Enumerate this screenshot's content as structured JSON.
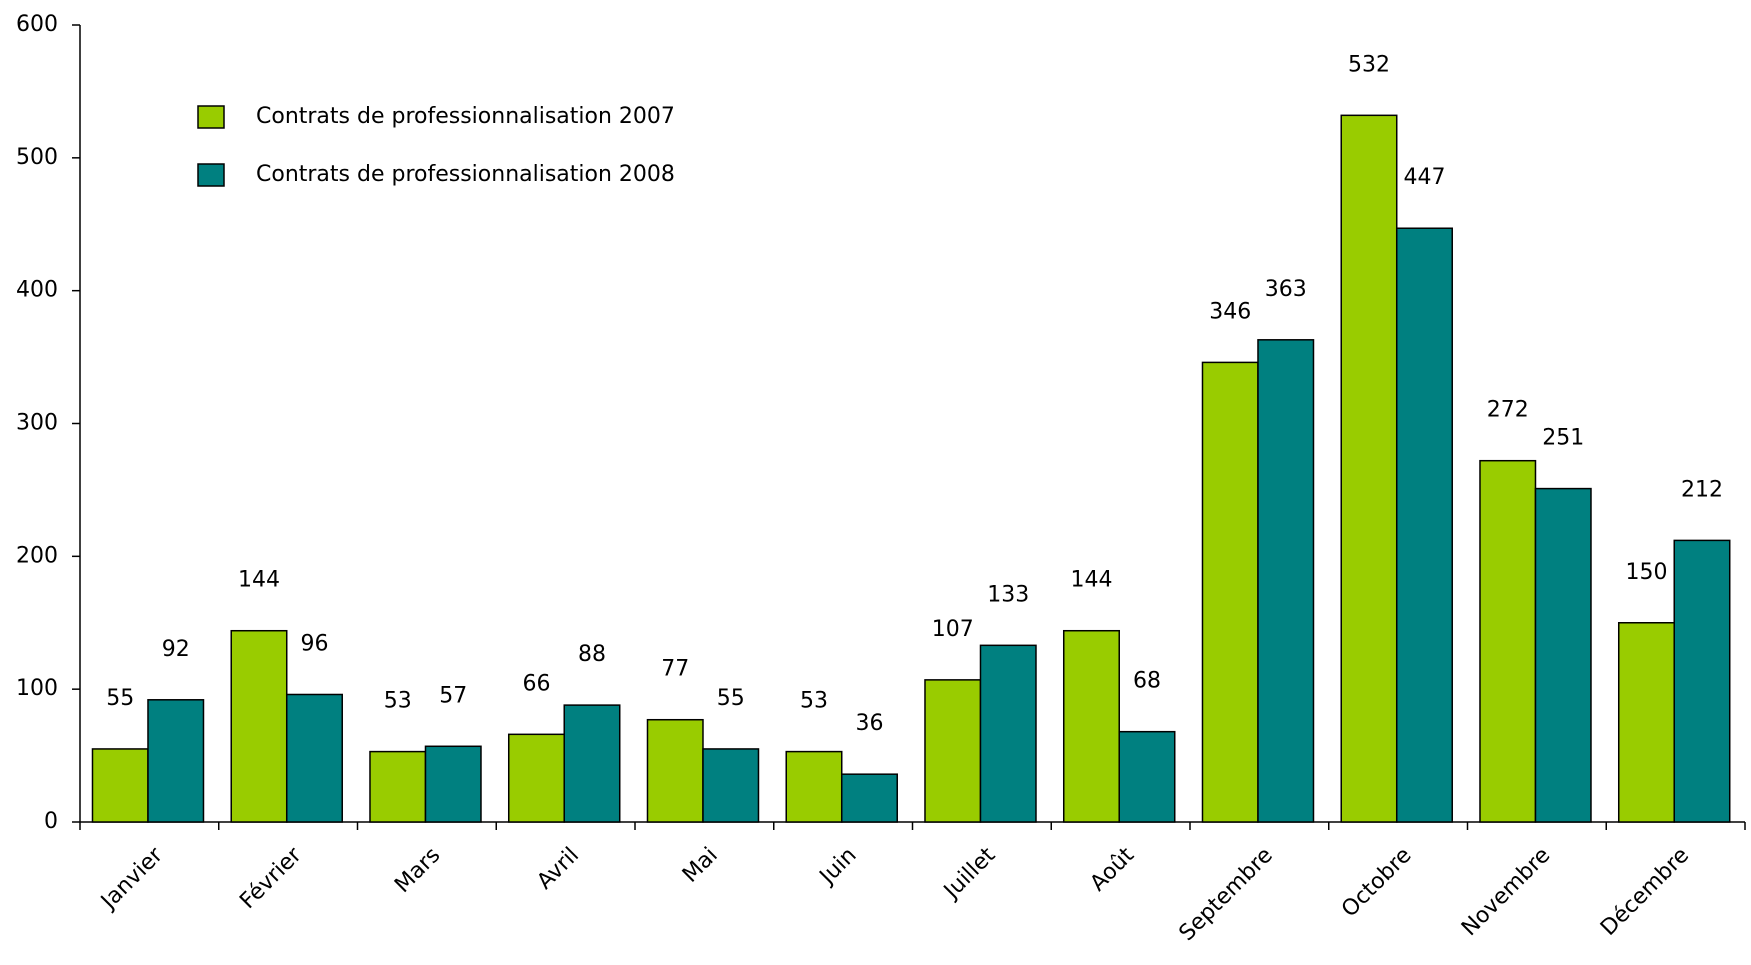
{
  "chart_data": {
    "type": "bar",
    "categories": [
      "Janvier",
      "Février",
      "Mars",
      "Avril",
      "Mai",
      "Juin",
      "Juillet",
      "Août",
      "Septembre",
      "Octobre",
      "Novembre",
      "Décembre"
    ],
    "series": [
      {
        "name": "Contrats de professionnalisation 2007",
        "color": "#99cc00",
        "values": [
          55,
          144,
          53,
          66,
          77,
          53,
          107,
          144,
          346,
          532,
          272,
          150
        ]
      },
      {
        "name": "Contrats de professionnalisation 2008",
        "color": "#008080",
        "values": [
          92,
          96,
          57,
          88,
          55,
          36,
          133,
          68,
          363,
          447,
          251,
          212
        ]
      }
    ],
    "ylim": [
      0,
      600
    ],
    "yticks": [
      0,
      100,
      200,
      300,
      400,
      500,
      600
    ],
    "legend": "top-left"
  }
}
